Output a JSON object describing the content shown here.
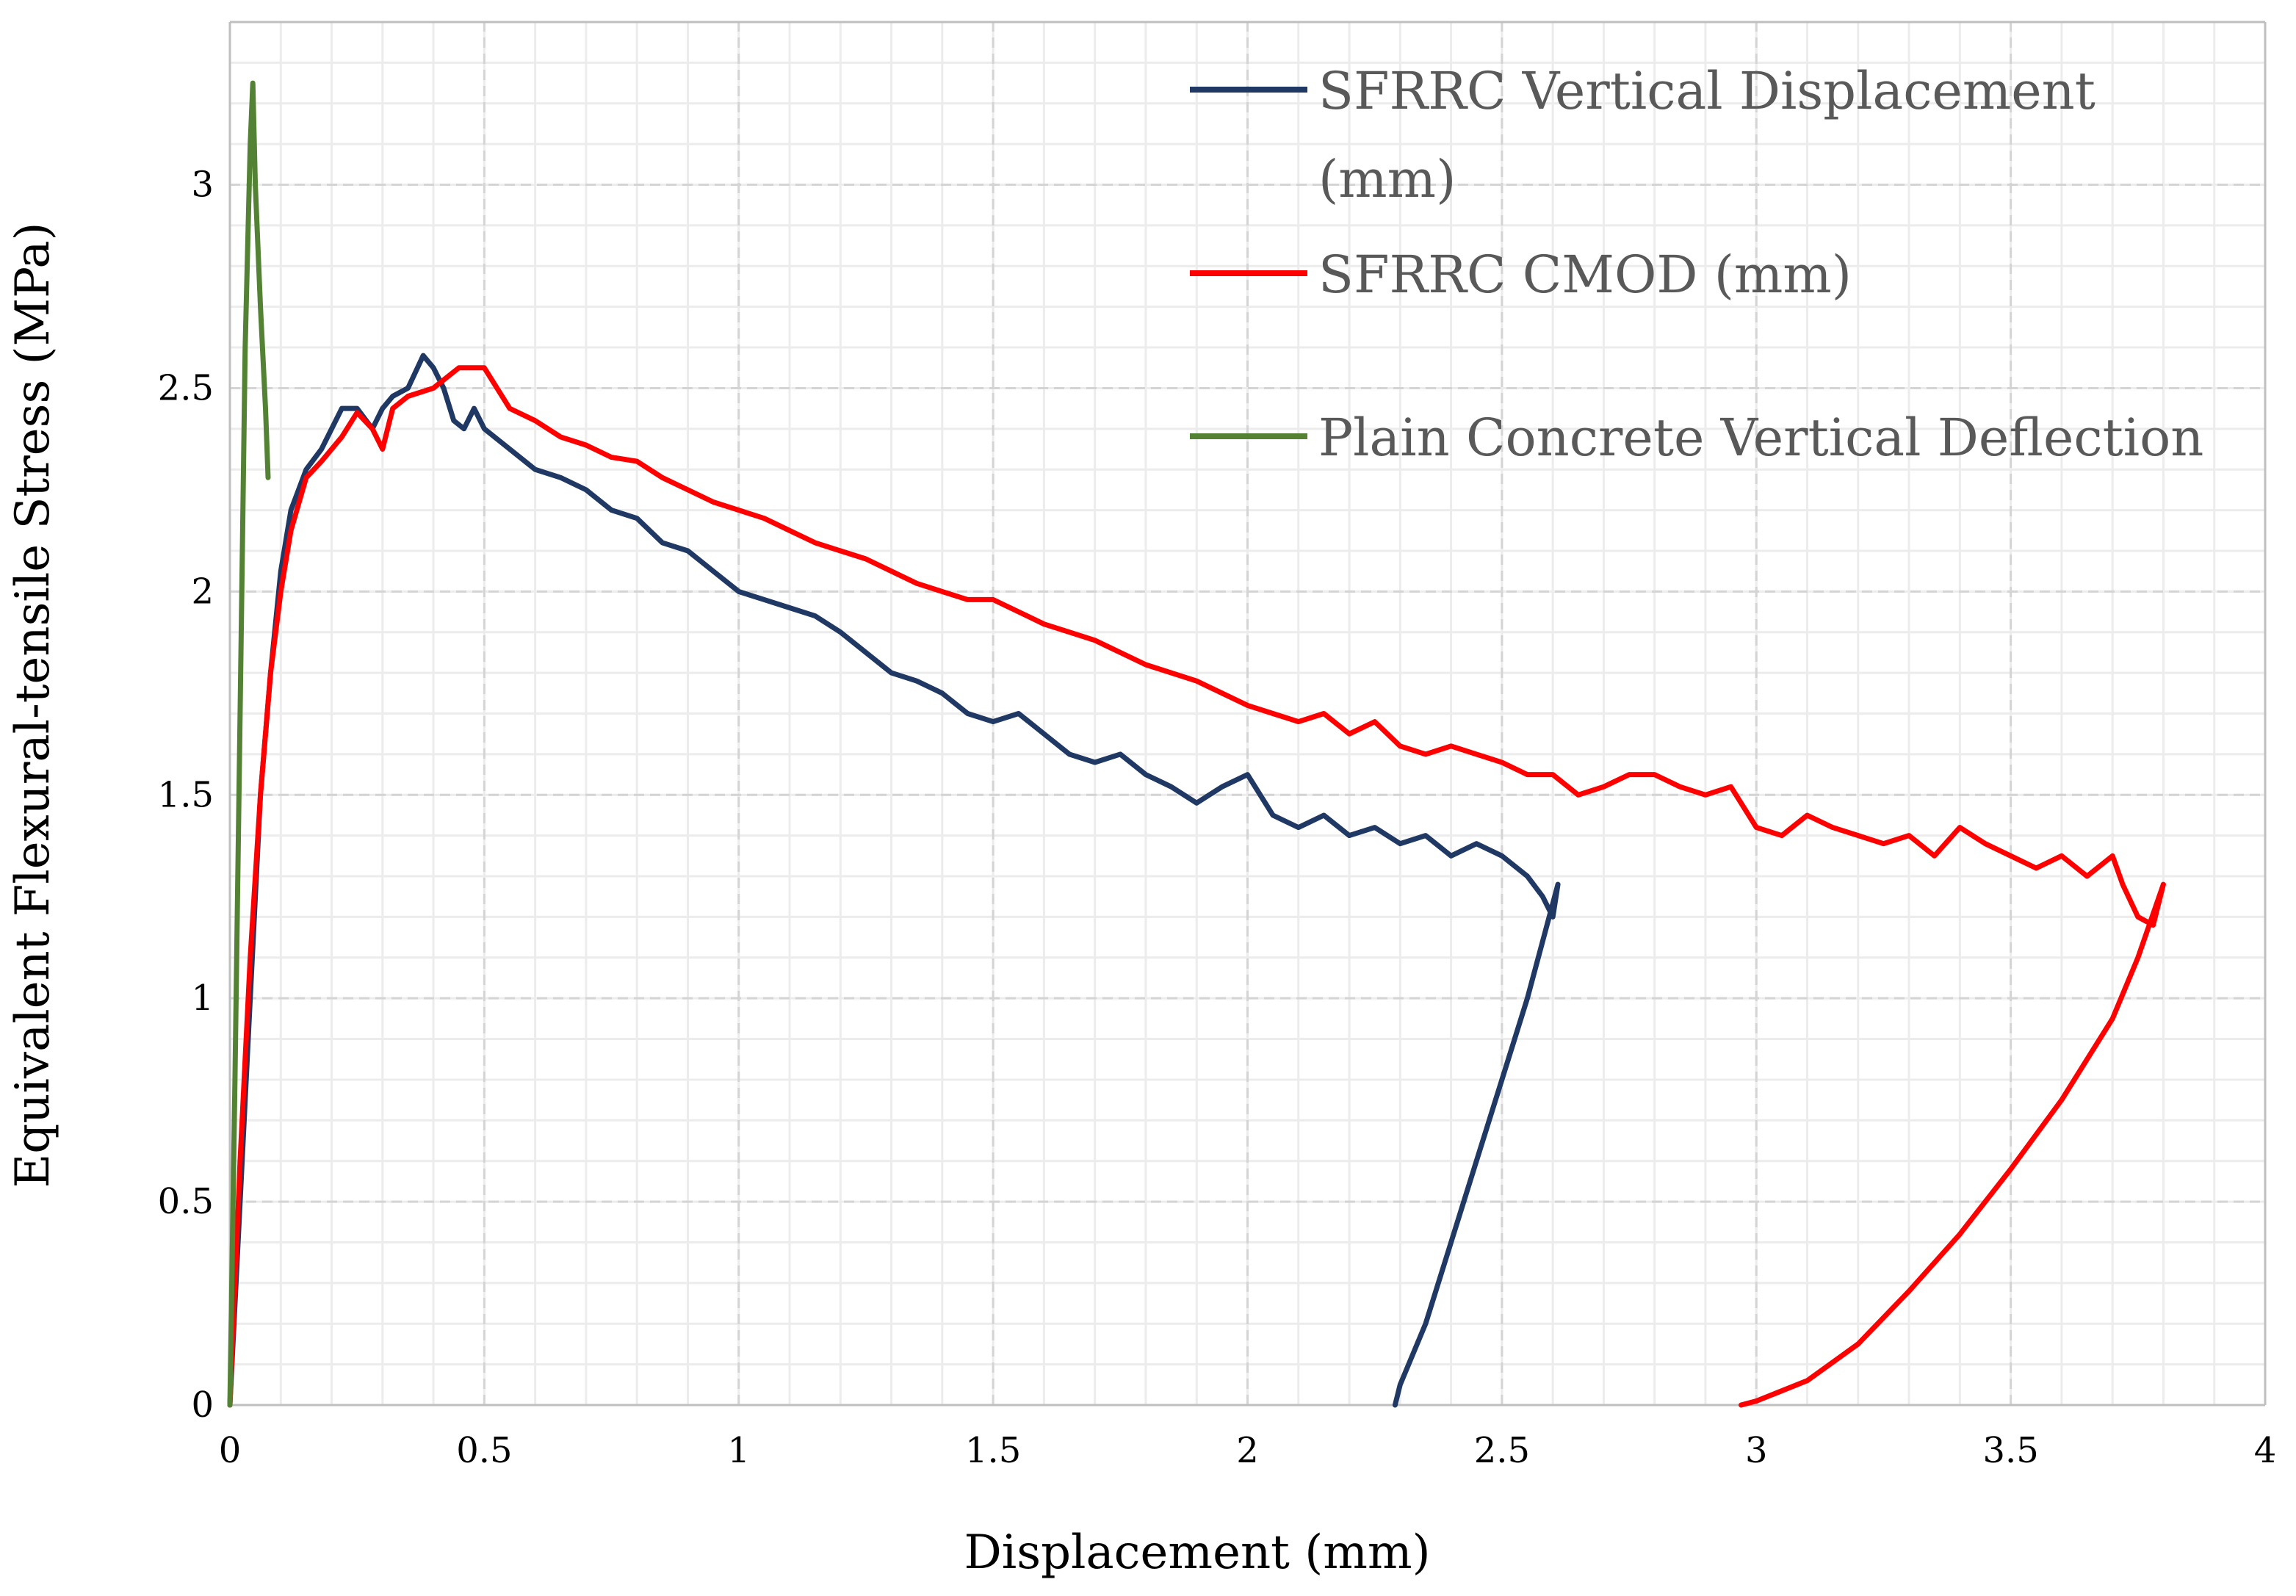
{
  "chart_data": {
    "type": "line",
    "title": "",
    "xlabel": "Displacement (mm)",
    "ylabel": "Equivalent Flexural-tensile Stress (MPa)",
    "xlim": [
      0,
      4
    ],
    "ylim": [
      0,
      3.4
    ],
    "x_major_step": 0.5,
    "y_major_step": 0.5,
    "x_minor_step": 0.1,
    "y_minor_step": 0.1,
    "x_tick_labels": [
      "0",
      "0.5",
      "1",
      "1.5",
      "2",
      "2.5",
      "3",
      "3.5",
      "4"
    ],
    "y_tick_labels": [
      "0",
      "0.5",
      "1",
      "1.5",
      "2",
      "2.5",
      "3"
    ],
    "grid": true,
    "legend_position": "top-right",
    "series": [
      {
        "name": "SFRRC Vertical Displacement (mm)",
        "legend_lines": [
          "SFRRC Vertical Displacement",
          "(mm)"
        ],
        "color": "#1f3864",
        "x": [
          0,
          0.02,
          0.04,
          0.06,
          0.08,
          0.1,
          0.12,
          0.15,
          0.18,
          0.22,
          0.25,
          0.28,
          0.3,
          0.32,
          0.35,
          0.38,
          0.4,
          0.42,
          0.44,
          0.46,
          0.48,
          0.5,
          0.55,
          0.6,
          0.65,
          0.7,
          0.75,
          0.8,
          0.85,
          0.9,
          0.95,
          1.0,
          1.05,
          1.1,
          1.15,
          1.2,
          1.25,
          1.3,
          1.35,
          1.4,
          1.45,
          1.5,
          1.55,
          1.6,
          1.65,
          1.7,
          1.75,
          1.8,
          1.85,
          1.9,
          1.95,
          2.0,
          2.05,
          2.1,
          2.15,
          2.2,
          2.25,
          2.3,
          2.35,
          2.4,
          2.45,
          2.5,
          2.55,
          2.58,
          2.6,
          2.61,
          2.55,
          2.5,
          2.45,
          2.4,
          2.35,
          2.3,
          2.29
        ],
        "y": [
          0,
          0.5,
          1.0,
          1.5,
          1.8,
          2.05,
          2.2,
          2.3,
          2.35,
          2.45,
          2.45,
          2.4,
          2.45,
          2.48,
          2.5,
          2.58,
          2.55,
          2.5,
          2.42,
          2.4,
          2.45,
          2.4,
          2.35,
          2.3,
          2.28,
          2.25,
          2.2,
          2.18,
          2.12,
          2.1,
          2.05,
          2.0,
          1.98,
          1.96,
          1.94,
          1.9,
          1.85,
          1.8,
          1.78,
          1.75,
          1.7,
          1.68,
          1.7,
          1.65,
          1.6,
          1.58,
          1.6,
          1.55,
          1.52,
          1.48,
          1.52,
          1.55,
          1.45,
          1.42,
          1.45,
          1.4,
          1.42,
          1.38,
          1.4,
          1.35,
          1.38,
          1.35,
          1.3,
          1.25,
          1.2,
          1.28,
          1.0,
          0.8,
          0.6,
          0.4,
          0.2,
          0.05,
          0
        ]
      },
      {
        "name": "SFRRC CMOD (mm)",
        "legend_lines": [
          "SFRRC CMOD (mm)"
        ],
        "color": "#ff0000",
        "x": [
          0,
          0.02,
          0.04,
          0.06,
          0.08,
          0.1,
          0.12,
          0.15,
          0.18,
          0.22,
          0.25,
          0.28,
          0.3,
          0.32,
          0.35,
          0.4,
          0.45,
          0.5,
          0.55,
          0.6,
          0.65,
          0.7,
          0.75,
          0.8,
          0.85,
          0.9,
          0.95,
          1.0,
          1.05,
          1.1,
          1.15,
          1.2,
          1.25,
          1.3,
          1.35,
          1.4,
          1.45,
          1.5,
          1.55,
          1.6,
          1.65,
          1.7,
          1.75,
          1.8,
          1.85,
          1.9,
          1.95,
          2.0,
          2.05,
          2.1,
          2.15,
          2.2,
          2.25,
          2.3,
          2.35,
          2.4,
          2.45,
          2.5,
          2.55,
          2.6,
          2.65,
          2.7,
          2.75,
          2.8,
          2.85,
          2.9,
          2.95,
          3.0,
          3.05,
          3.1,
          3.15,
          3.2,
          3.25,
          3.3,
          3.35,
          3.4,
          3.45,
          3.5,
          3.55,
          3.6,
          3.65,
          3.7,
          3.72,
          3.75,
          3.78,
          3.8,
          3.75,
          3.7,
          3.6,
          3.5,
          3.4,
          3.3,
          3.2,
          3.1,
          3.0,
          2.97
        ],
        "y": [
          0,
          0.6,
          1.1,
          1.5,
          1.8,
          2.0,
          2.15,
          2.28,
          2.32,
          2.38,
          2.44,
          2.4,
          2.35,
          2.45,
          2.48,
          2.5,
          2.55,
          2.55,
          2.45,
          2.42,
          2.38,
          2.36,
          2.33,
          2.32,
          2.28,
          2.25,
          2.22,
          2.2,
          2.18,
          2.15,
          2.12,
          2.1,
          2.08,
          2.05,
          2.02,
          2.0,
          1.98,
          1.98,
          1.95,
          1.92,
          1.9,
          1.88,
          1.85,
          1.82,
          1.8,
          1.78,
          1.75,
          1.72,
          1.7,
          1.68,
          1.7,
          1.65,
          1.68,
          1.62,
          1.6,
          1.62,
          1.6,
          1.58,
          1.55,
          1.55,
          1.5,
          1.52,
          1.55,
          1.55,
          1.52,
          1.5,
          1.52,
          1.42,
          1.4,
          1.45,
          1.42,
          1.4,
          1.38,
          1.4,
          1.35,
          1.42,
          1.38,
          1.35,
          1.32,
          1.35,
          1.3,
          1.35,
          1.28,
          1.2,
          1.18,
          1.28,
          1.1,
          0.95,
          0.75,
          0.58,
          0.42,
          0.28,
          0.15,
          0.06,
          0.01,
          0
        ]
      },
      {
        "name": "Plain Concrete Vertical Deflection",
        "legend_lines": [
          "Plain Concrete Vertical Deflection"
        ],
        "color": "#548235",
        "x": [
          0,
          0.01,
          0.02,
          0.03,
          0.04,
          0.045,
          0.05,
          0.06,
          0.07,
          0.075
        ],
        "y": [
          0,
          0.8,
          1.7,
          2.6,
          3.1,
          3.25,
          3.0,
          2.7,
          2.45,
          2.28
        ]
      }
    ]
  }
}
